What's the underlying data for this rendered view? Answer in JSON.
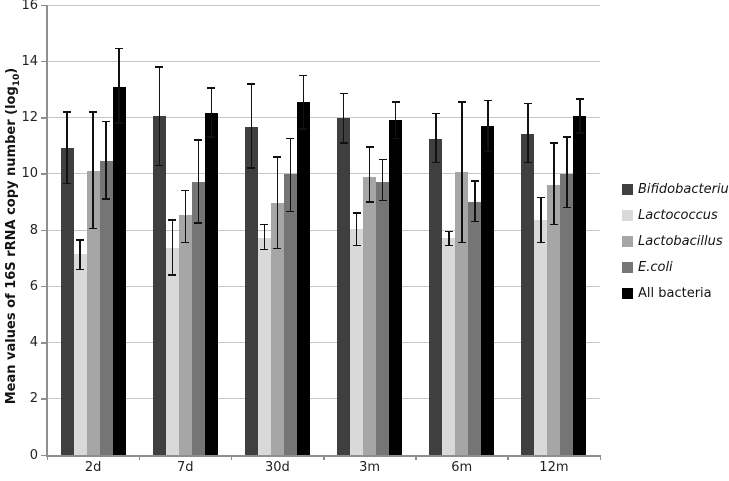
{
  "chart_data": {
    "type": "bar",
    "title": "",
    "categories": [
      "2d",
      "7d",
      "30d",
      "3m",
      "6m",
      "12m"
    ],
    "series": [
      {
        "name": "Bifidobacterium",
        "italic": true,
        "color": "#3f3f3f",
        "values": [
          10.9,
          12.05,
          11.65,
          12.0,
          11.25,
          11.4
        ],
        "err_low": [
          9.65,
          10.3,
          10.2,
          11.1,
          10.4,
          10.4
        ],
        "err_high": [
          12.2,
          13.8,
          13.2,
          12.85,
          12.15,
          12.5
        ]
      },
      {
        "name": "Lactococcus",
        "italic": true,
        "color": "#d9d9d9",
        "values": [
          7.15,
          7.35,
          7.7,
          8.05,
          7.7,
          8.35
        ],
        "err_low": [
          6.6,
          6.4,
          7.3,
          7.45,
          7.45,
          7.55
        ],
        "err_high": [
          7.65,
          8.35,
          8.2,
          8.6,
          7.95,
          9.15
        ]
      },
      {
        "name": "Lactobacillus",
        "italic": true,
        "color": "#a6a6a6",
        "values": [
          10.1,
          8.55,
          8.95,
          9.9,
          10.05,
          9.6
        ],
        "err_low": [
          8.05,
          7.55,
          7.35,
          9.0,
          7.55,
          8.2
        ],
        "err_high": [
          12.2,
          9.4,
          10.6,
          10.95,
          12.55,
          11.1
        ]
      },
      {
        "name": "E.coli",
        "italic": true,
        "color": "#757575",
        "values": [
          10.45,
          9.7,
          10.0,
          9.7,
          9.0,
          10.0
        ],
        "err_low": [
          9.1,
          8.25,
          8.65,
          9.05,
          8.3,
          8.8
        ],
        "err_high": [
          11.85,
          11.2,
          11.25,
          10.5,
          9.75,
          11.3
        ]
      },
      {
        "name": "All bacteria",
        "italic": false,
        "color": "#000000",
        "values": [
          13.1,
          12.15,
          12.55,
          11.9,
          11.7,
          12.05
        ],
        "err_low": [
          11.8,
          11.3,
          11.6,
          11.25,
          10.8,
          11.45
        ],
        "err_high": [
          14.45,
          13.05,
          13.5,
          12.55,
          12.6,
          12.65
        ]
      }
    ],
    "ylabel_prefix": "Mean values of 16S rRNA copy number (log",
    "ylabel_sub": "10",
    "ylabel_suffix": ")",
    "xlabel": "",
    "ylim": [
      0,
      16
    ],
    "ytick_step": 2,
    "yticks": [
      "0",
      "2",
      "4",
      "6",
      "8",
      "10",
      "12",
      "14",
      "16"
    ],
    "grid": true,
    "legend_position": "right",
    "colors": {
      "background": "#ffffff",
      "gridline": "#c6c6c6",
      "axis": "#8f8f8f",
      "error_bar": "#111111",
      "tick_text": "#222222"
    }
  }
}
